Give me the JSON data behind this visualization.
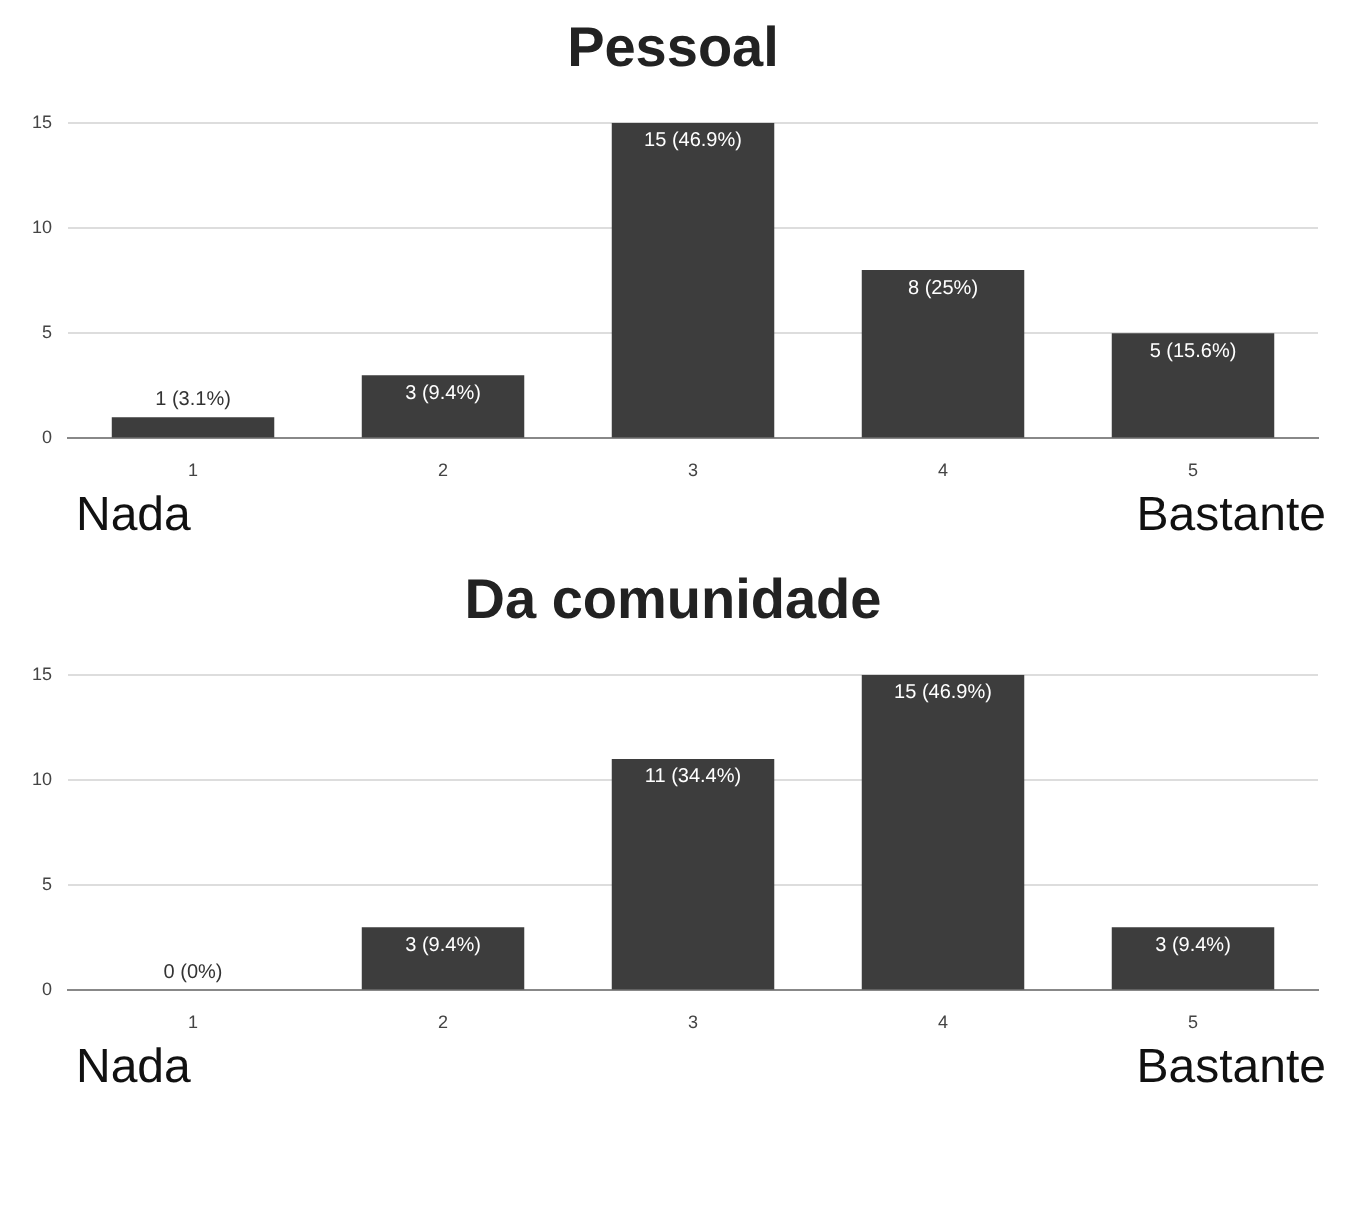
{
  "chart_data": [
    {
      "type": "bar",
      "title": "Pessoal",
      "categories": [
        "1",
        "2",
        "3",
        "4",
        "5"
      ],
      "values": [
        1,
        3,
        15,
        8,
        5
      ],
      "value_labels": [
        "1 (3.1%)",
        "3 (9.4%)",
        "15 (46.9%)",
        "8 (25%)",
        "5 (15.6%)"
      ],
      "color": "#3d3d3d",
      "ylim": [
        0,
        15
      ],
      "yticks": [
        0,
        5,
        10,
        15
      ],
      "grid": "y",
      "annotations": [
        "Nada",
        "Bastante"
      ]
    },
    {
      "type": "bar",
      "title": "Da comunidade",
      "categories": [
        "1",
        "2",
        "3",
        "4",
        "5"
      ],
      "values": [
        0,
        3,
        11,
        15,
        3
      ],
      "value_labels": [
        "0 (0%)",
        "3 (9.4%)",
        "11 (34.4%)",
        "15 (46.9%)",
        "3 (9.4%)"
      ],
      "color": "#3d3d3d",
      "ylim": [
        0,
        15
      ],
      "yticks": [
        0,
        5,
        10,
        15
      ],
      "grid": "y",
      "annotations": [
        "Nada",
        "Bastante"
      ]
    }
  ]
}
